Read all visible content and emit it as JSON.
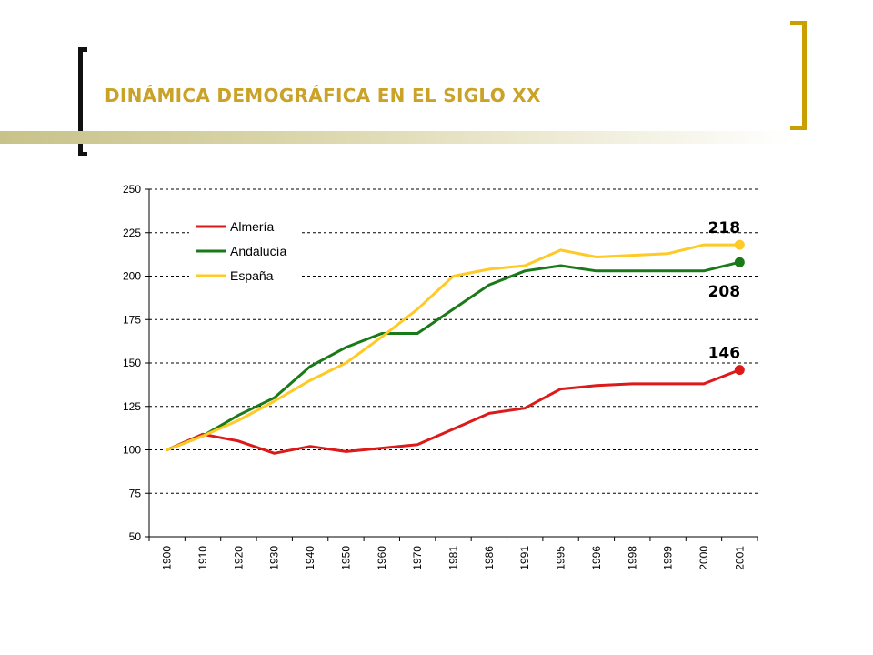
{
  "slide": {
    "title": "DINÁMICA DEMOGRÁFICA EN EL SIGLO XX"
  },
  "colors": {
    "title": "#c9a227",
    "left_bracket": "#111111",
    "right_bracket": "#c9a000"
  },
  "chart_data": {
    "type": "line",
    "title": "",
    "xlabel": "",
    "ylabel": "",
    "categories": [
      "1900",
      "1910",
      "1920",
      "1930",
      "1940",
      "1950",
      "1960",
      "1970",
      "1981",
      "1986",
      "1991",
      "1995",
      "1996",
      "1998",
      "1999",
      "2000",
      "2001"
    ],
    "ylim": [
      50,
      250
    ],
    "yticks": [
      50,
      75,
      100,
      125,
      150,
      175,
      200,
      225,
      250
    ],
    "grid": "horizontal-dashed",
    "legend_position": "top-left",
    "series": [
      {
        "name": "Almería",
        "color": "#dd1a1a",
        "values": [
          100,
          109,
          105,
          98,
          102,
          99,
          101,
          103,
          112,
          121,
          124,
          135,
          137,
          138,
          138,
          138,
          146
        ]
      },
      {
        "name": "Andalucía",
        "color": "#1a7a1a",
        "values": [
          100,
          108,
          120,
          130,
          148,
          159,
          167,
          167,
          181,
          195,
          203,
          206,
          203,
          203,
          203,
          203,
          208
        ]
      },
      {
        "name": "España",
        "color": "#ffc926",
        "values": [
          100,
          108,
          117,
          128,
          140,
          150,
          165,
          181,
          200,
          204,
          206,
          215,
          211,
          212,
          213,
          218,
          218
        ]
      }
    ],
    "annotations": [
      {
        "series": "España",
        "text": "218",
        "placement": "above"
      },
      {
        "series": "Andalucía",
        "text": "208",
        "placement": "below"
      },
      {
        "series": "Almería",
        "text": "146",
        "placement": "above"
      }
    ]
  }
}
